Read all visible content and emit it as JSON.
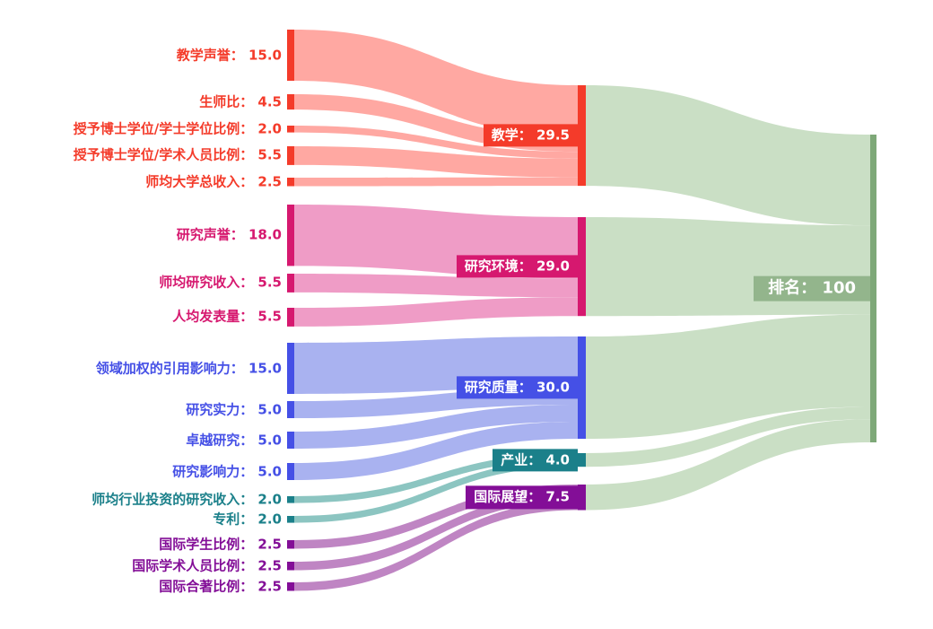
{
  "chart_data": {
    "type": "sankey",
    "title": "",
    "unit_total": 100,
    "groups": [
      {
        "id": "teaching",
        "color": "#f43b2a",
        "flow_color": "#ffa8a2"
      },
      {
        "id": "research-environment",
        "color": "#d6186f",
        "flow_color": "#ef9cc6"
      },
      {
        "id": "research-quality",
        "color": "#4550e6",
        "flow_color": "#a9b2f0"
      },
      {
        "id": "industry",
        "color": "#1b808a",
        "flow_color": "#8cc5c1"
      },
      {
        "id": "international-outlook",
        "color": "#830e97",
        "flow_color": "#bf85c3"
      }
    ],
    "left_nodes": [
      {
        "name": "教学声誉",
        "value": 15.0,
        "display": "教学声誉： 15.0",
        "group": 0,
        "target": "教学",
        "target_index": 0
      },
      {
        "name": "生师比",
        "value": 4.5,
        "display": "生师比： 4.5",
        "group": 0,
        "target": "教学",
        "target_index": 0
      },
      {
        "name": "授予博士学位/学士学位比例",
        "value": 2.0,
        "display": "授予博士学位/学士学位比例： 2.0",
        "group": 0,
        "target": "教学",
        "target_index": 0
      },
      {
        "name": "授予博士学位/学术人员比例",
        "value": 5.5,
        "display": "授予博士学位/学术人员比例： 5.5",
        "group": 0,
        "target": "教学",
        "target_index": 0
      },
      {
        "name": "师均大学总收入",
        "value": 2.5,
        "display": "师均大学总收入： 2.5",
        "group": 0,
        "target": "教学",
        "target_index": 0
      },
      {
        "name": "研究声誉",
        "value": 18.0,
        "display": "研究声誉： 18.0",
        "group": 1,
        "target": "研究环境",
        "target_index": 1
      },
      {
        "name": "师均研究收入",
        "value": 5.5,
        "display": "师均研究收入： 5.5",
        "group": 1,
        "target": "研究环境",
        "target_index": 1
      },
      {
        "name": "人均发表量",
        "value": 5.5,
        "display": "人均发表量： 5.5",
        "group": 1,
        "target": "研究环境",
        "target_index": 1
      },
      {
        "name": "领域加权的引用影响力",
        "value": 15.0,
        "display": "领域加权的引用影响力： 15.0",
        "group": 2,
        "target": "研究质量",
        "target_index": 2
      },
      {
        "name": "研究实力",
        "value": 5.0,
        "display": "研究实力： 5.0",
        "group": 2,
        "target": "研究质量",
        "target_index": 2
      },
      {
        "name": "卓越研究",
        "value": 5.0,
        "display": "卓越研究： 5.0",
        "group": 2,
        "target": "研究质量",
        "target_index": 2
      },
      {
        "name": "研究影响力",
        "value": 5.0,
        "display": "研究影响力： 5.0",
        "group": 2,
        "target": "研究质量",
        "target_index": 2
      },
      {
        "name": "师均行业投资的研究收入",
        "value": 2.0,
        "display": "师均行业投资的研究收入： 2.0",
        "group": 3,
        "target": "产业",
        "target_index": 3
      },
      {
        "name": "专利",
        "value": 2.0,
        "display": "专利： 2.0",
        "group": 3,
        "target": "产业",
        "target_index": 3
      },
      {
        "name": "国际学生比例",
        "value": 2.5,
        "display": "国际学生比例： 2.5",
        "group": 4,
        "target": "国际展望",
        "target_index": 4
      },
      {
        "name": "国际学术人员比例",
        "value": 2.5,
        "display": "国际学术人员比例： 2.5",
        "group": 4,
        "target": "国际展望",
        "target_index": 4
      },
      {
        "name": "国际合著比例",
        "value": 2.5,
        "display": "国际合著比例： 2.5",
        "group": 4,
        "target": "国际展望",
        "target_index": 4
      }
    ],
    "middle_nodes": [
      {
        "name": "教学",
        "value": 29.5,
        "display": "教学：  29.5",
        "group": 0
      },
      {
        "name": "研究环境",
        "value": 29.0,
        "display": "研究环境：  29.0",
        "group": 1
      },
      {
        "name": "研究质量",
        "value": 30.0,
        "display": "研究质量：  30.0",
        "group": 2
      },
      {
        "name": "产业",
        "value": 4.0,
        "display": "产业：  4.0",
        "group": 3
      },
      {
        "name": "国际展望",
        "value": 7.5,
        "display": "国际展望：  7.5",
        "group": 4
      }
    ],
    "right_node": {
      "name": "排名",
      "value": 100,
      "display": "排名：  100",
      "color": "#7ea878",
      "label_bg": "#93b58c",
      "flow_color": "#cadfc5"
    },
    "links": [
      {
        "source": "教学声誉",
        "target": "教学",
        "value": 15.0
      },
      {
        "source": "生师比",
        "target": "教学",
        "value": 4.5
      },
      {
        "source": "授予博士学位/学士学位比例",
        "target": "教学",
        "value": 2.0
      },
      {
        "source": "授予博士学位/学术人员比例",
        "target": "教学",
        "value": 5.5
      },
      {
        "source": "师均大学总收入",
        "target": "教学",
        "value": 2.5
      },
      {
        "source": "研究声誉",
        "target": "研究环境",
        "value": 18.0
      },
      {
        "source": "师均研究收入",
        "target": "研究环境",
        "value": 5.5
      },
      {
        "source": "人均发表量",
        "target": "研究环境",
        "value": 5.5
      },
      {
        "source": "领域加权的引用影响力",
        "target": "研究质量",
        "value": 15.0
      },
      {
        "source": "研究实力",
        "target": "研究质量",
        "value": 5.0
      },
      {
        "source": "卓越研究",
        "target": "研究质量",
        "value": 5.0
      },
      {
        "source": "研究影响力",
        "target": "研究质量",
        "value": 5.0
      },
      {
        "source": "师均行业投资的研究收入",
        "target": "产业",
        "value": 2.0
      },
      {
        "source": "专利",
        "target": "产业",
        "value": 2.0
      },
      {
        "source": "国际学生比例",
        "target": "国际展望",
        "value": 2.5
      },
      {
        "source": "国际学术人员比例",
        "target": "国际展望",
        "value": 2.5
      },
      {
        "source": "国际合著比例",
        "target": "国际展望",
        "value": 2.5
      },
      {
        "source": "教学",
        "target": "排名",
        "value": 29.5
      },
      {
        "source": "研究环境",
        "target": "排名",
        "value": 29.0
      },
      {
        "source": "研究质量",
        "target": "排名",
        "value": 30.0
      },
      {
        "source": "产业",
        "target": "排名",
        "value": 4.0
      },
      {
        "source": "国际展望",
        "target": "排名",
        "value": 7.5
      }
    ]
  }
}
